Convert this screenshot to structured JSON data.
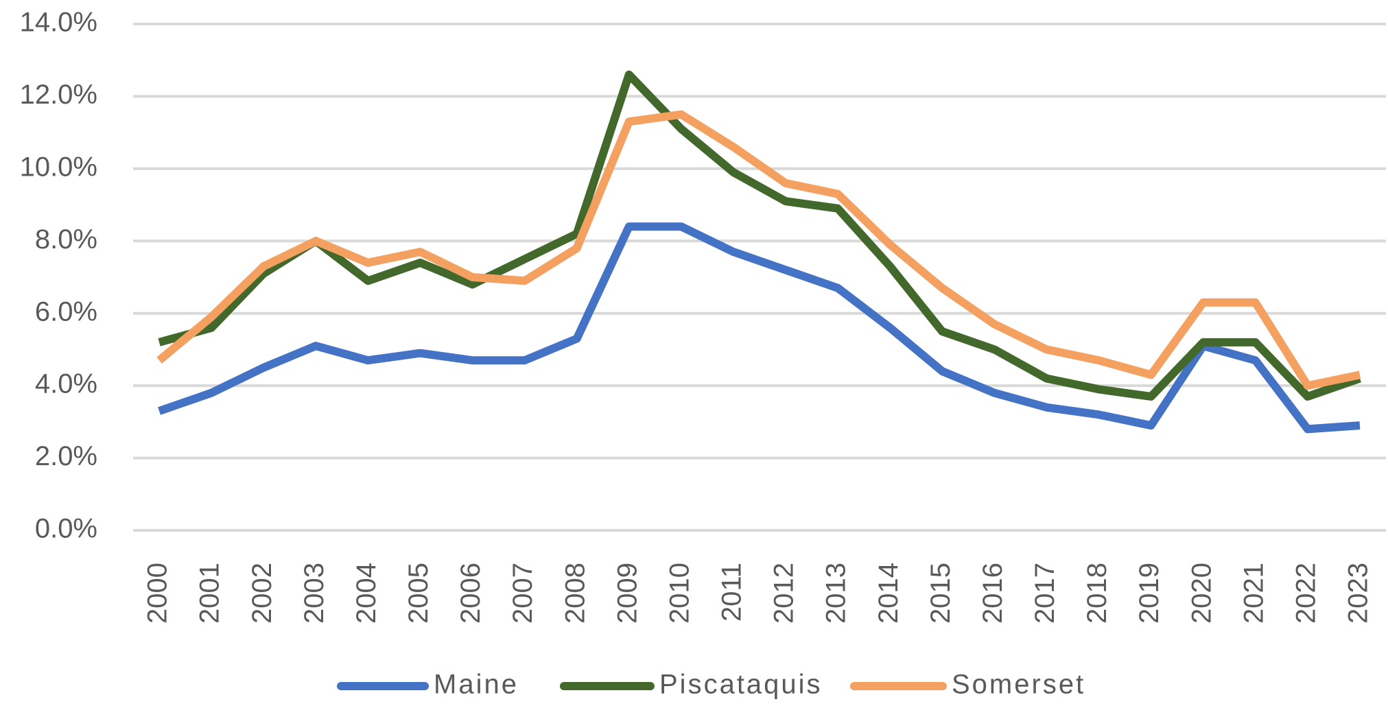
{
  "chart_data": {
    "type": "line",
    "categories": [
      "2000",
      "2001",
      "2002",
      "2003",
      "2004",
      "2005",
      "2006",
      "2007",
      "2008",
      "2009",
      "2010",
      "2011",
      "2012",
      "2013",
      "2014",
      "2015",
      "2016",
      "2017",
      "2018",
      "2019",
      "2020",
      "2021",
      "2022",
      "2023"
    ],
    "series": [
      {
        "name": "Maine",
        "color": "#4472c4",
        "values": [
          3.3,
          3.8,
          4.5,
          5.1,
          4.7,
          4.9,
          4.7,
          4.7,
          5.3,
          8.4,
          8.4,
          7.7,
          7.2,
          6.7,
          5.6,
          4.4,
          3.8,
          3.4,
          3.2,
          2.9,
          5.1,
          4.7,
          2.8,
          2.9
        ]
      },
      {
        "name": "Piscataquis",
        "color": "#43682b",
        "values": [
          5.2,
          5.6,
          7.1,
          8.0,
          6.9,
          7.4,
          6.8,
          7.5,
          8.2,
          12.6,
          11.1,
          9.9,
          9.1,
          8.9,
          7.3,
          5.5,
          5.0,
          4.2,
          3.9,
          3.7,
          5.2,
          5.2,
          3.7,
          4.2
        ]
      },
      {
        "name": "Somerset",
        "color": "#f4a060",
        "values": [
          4.7,
          5.9,
          7.3,
          8.0,
          7.4,
          7.7,
          7.0,
          6.9,
          7.8,
          11.3,
          11.5,
          10.6,
          9.6,
          9.3,
          7.9,
          6.7,
          5.7,
          5.0,
          4.7,
          4.3,
          6.3,
          6.3,
          4.0,
          4.3
        ]
      }
    ],
    "ylim": [
      0,
      14
    ],
    "yticks": [
      {
        "value": 0,
        "label": "0.0%"
      },
      {
        "value": 2,
        "label": "2.0%"
      },
      {
        "value": 4,
        "label": "4.0%"
      },
      {
        "value": 6,
        "label": "6.0%"
      },
      {
        "value": 8,
        "label": "8.0%"
      },
      {
        "value": 10,
        "label": "10.0%"
      },
      {
        "value": 12,
        "label": "12.0%"
      },
      {
        "value": 14,
        "label": "14.0%"
      }
    ],
    "grid": true,
    "legend": "bottom"
  }
}
